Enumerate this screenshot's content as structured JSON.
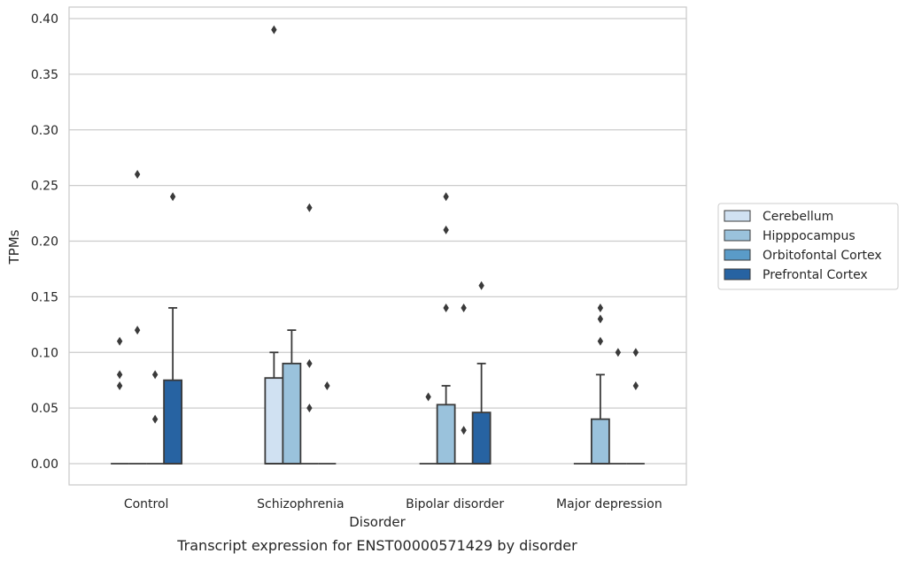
{
  "chart_data": {
    "type": "box",
    "xlabel": "Disorder",
    "ylabel": "TPMs",
    "caption": "Transcript expression for ENST00000571429 by disorder",
    "ylim": [
      -0.02,
      0.41
    ],
    "yticks": [
      "0.00",
      "0.05",
      "0.10",
      "0.15",
      "0.20",
      "0.25",
      "0.30",
      "0.35",
      "0.40"
    ],
    "grid": "horizontal",
    "legend_position": "right",
    "categories": [
      "Control",
      "Schizophrenia",
      "Bipolar disorder",
      "Major depression"
    ],
    "series": [
      {
        "name": "Cerebellum",
        "color": "#d0e1f2",
        "boxes": [
          {
            "q1": 0,
            "median": 0,
            "q3": 0,
            "whisker_high": 0,
            "outliers": [
              0.07,
              0.08,
              0.11
            ]
          },
          {
            "q1": 0,
            "median": 0,
            "q3": 0.077,
            "whisker_high": 0.1,
            "outliers": [
              0.39
            ]
          },
          {
            "q1": 0,
            "median": 0,
            "q3": 0,
            "whisker_high": 0,
            "outliers": [
              0.06
            ]
          },
          {
            "q1": 0,
            "median": 0,
            "q3": 0,
            "whisker_high": 0,
            "outliers": []
          }
        ]
      },
      {
        "name": "Hipppocampus",
        "color": "#9ac2dc",
        "boxes": [
          {
            "q1": 0,
            "median": 0,
            "q3": 0,
            "whisker_high": 0,
            "outliers": [
              0.12,
              0.26
            ]
          },
          {
            "q1": 0,
            "median": 0,
            "q3": 0.09,
            "whisker_high": 0.12,
            "outliers": []
          },
          {
            "q1": 0,
            "median": 0,
            "q3": 0.053,
            "whisker_high": 0.07,
            "outliers": [
              0.14,
              0.21,
              0.24
            ]
          },
          {
            "q1": 0,
            "median": 0,
            "q3": 0.04,
            "whisker_high": 0.08,
            "outliers": [
              0.11,
              0.13,
              0.14
            ]
          }
        ]
      },
      {
        "name": "Orbitofontal Cortex",
        "color": "#5a9bc8",
        "boxes": [
          {
            "q1": 0,
            "median": 0,
            "q3": 0,
            "whisker_high": 0,
            "outliers": [
              0.04,
              0.08
            ]
          },
          {
            "q1": 0,
            "median": 0,
            "q3": 0,
            "whisker_high": 0,
            "outliers": [
              0.05,
              0.09,
              0.23
            ]
          },
          {
            "q1": 0,
            "median": 0,
            "q3": 0,
            "whisker_high": 0,
            "outliers": [
              0.03,
              0.14
            ]
          },
          {
            "q1": 0,
            "median": 0,
            "q3": 0,
            "whisker_high": 0,
            "outliers": [
              0.1
            ]
          }
        ]
      },
      {
        "name": "Prefrontal Cortex",
        "color": "#2763a2",
        "boxes": [
          {
            "q1": 0,
            "median": 0,
            "q3": 0.075,
            "whisker_high": 0.14,
            "outliers": [
              0.24
            ]
          },
          {
            "q1": 0,
            "median": 0,
            "q3": 0,
            "whisker_high": 0,
            "outliers": [
              0.07
            ]
          },
          {
            "q1": 0,
            "median": 0,
            "q3": 0.046,
            "whisker_high": 0.09,
            "outliers": [
              0.16
            ]
          },
          {
            "q1": 0,
            "median": 0,
            "q3": 0,
            "whisker_high": 0,
            "outliers": [
              0.07,
              0.1
            ]
          }
        ]
      }
    ]
  }
}
